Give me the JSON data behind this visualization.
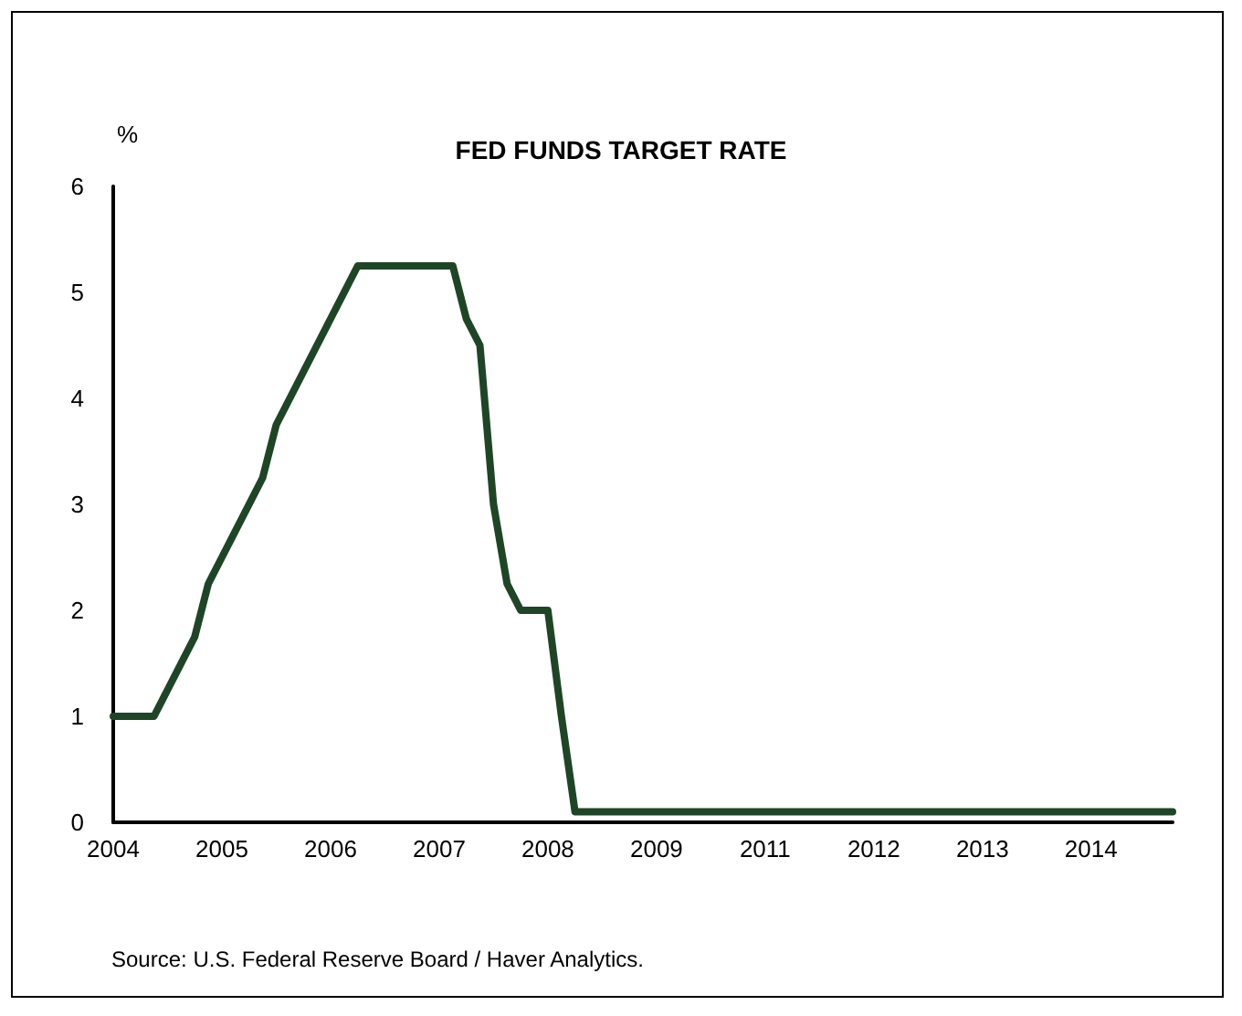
{
  "chart_data": {
    "type": "line",
    "title": "FED FUNDS TARGET RATE",
    "ylabel": "%",
    "categories": [
      "2004",
      null,
      null,
      null,
      null,
      null,
      null,
      null,
      "2005",
      null,
      null,
      null,
      null,
      null,
      null,
      null,
      "2006",
      null,
      null,
      null,
      null,
      null,
      null,
      null,
      "2007",
      null,
      null,
      null,
      null,
      null,
      null,
      null,
      "2008",
      null,
      null,
      null,
      null,
      null,
      null,
      null,
      "2009",
      null,
      null,
      null,
      null,
      null,
      null,
      null,
      "2011",
      null,
      null,
      null,
      null,
      null,
      null,
      null,
      "2012",
      null,
      null,
      null,
      null,
      null,
      null,
      null,
      "2013",
      null,
      null,
      null,
      null,
      null,
      null,
      null,
      "2014",
      null,
      null,
      null,
      null,
      null,
      null
    ],
    "series": [
      {
        "color": "#1f4527",
        "values": [
          1,
          1,
          1,
          1,
          1.25,
          1.5,
          1.75,
          2.25,
          2.5,
          2.75,
          3,
          3.25,
          3.75,
          4,
          4.25,
          4.5,
          4.75,
          5,
          5.25,
          5.25,
          5.25,
          5.25,
          5.25,
          5.25,
          5.25,
          5.25,
          4.75,
          4.5,
          3,
          2.25,
          2,
          2,
          2,
          1,
          0.1,
          0.1,
          0.1,
          0.1,
          0.1,
          0.1,
          0.1,
          0.1,
          0.1,
          0.1,
          0.1,
          0.1,
          0.1,
          0.1,
          0.1,
          0.1,
          0.1,
          0.1,
          0.1,
          0.1,
          0.1,
          0.1,
          0.1,
          0.1,
          0.1,
          0.1,
          0.1,
          0.1,
          0.1,
          0.1,
          0.1,
          0.1,
          0.1,
          0.1,
          0.1,
          0.1,
          0.1,
          0.1,
          0.1,
          0.1,
          0.1,
          0.1,
          0.1,
          0.1,
          0.1
        ]
      }
    ],
    "ylim": [
      0,
      6
    ],
    "yticks": [
      0,
      1,
      2,
      3,
      4,
      5,
      6
    ],
    "grid": false,
    "marker": "none",
    "line_style": "solid",
    "annotations": [
      "Source: U.S. Federal Reserve Board / Haver Analytics."
    ]
  }
}
